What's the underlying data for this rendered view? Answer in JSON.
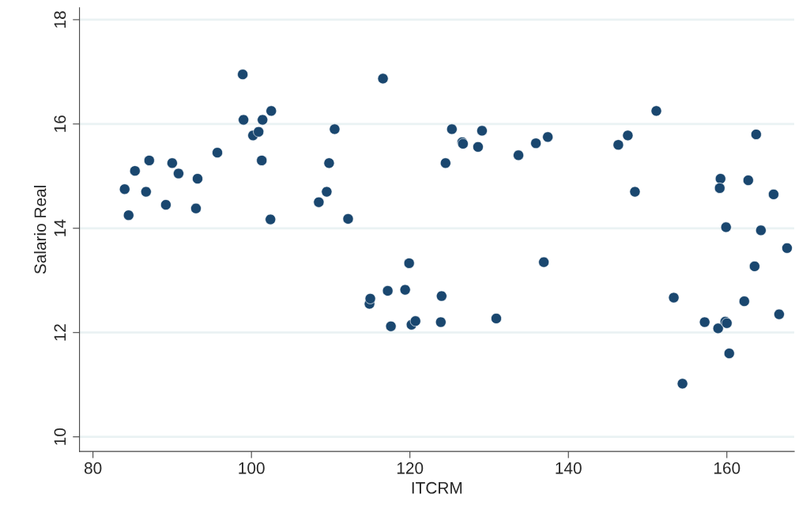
{
  "chart_data": {
    "type": "scatter",
    "xlabel": "ITCRM",
    "ylabel": "Salario Real",
    "xlim": [
      78.3,
      168.5
    ],
    "ylim": [
      9.72,
      18.23
    ],
    "xticks": [
      80,
      100,
      120,
      140,
      160
    ],
    "yticks": [
      10,
      12,
      14,
      16,
      18
    ],
    "grid": "y",
    "marker": "circle",
    "x": [
      84.0,
      84.5,
      85.3,
      86.7,
      87.1,
      89.2,
      90.0,
      90.8,
      93.0,
      93.2,
      95.7,
      98.9,
      99.0,
      100.2,
      100.9,
      101.4,
      101.3,
      102.5,
      102.4,
      108.5,
      109.5,
      109.8,
      110.5,
      112.2,
      114.9,
      115.0,
      116.6,
      117.2,
      117.6,
      119.4,
      119.9,
      120.2,
      120.7,
      123.9,
      124.0,
      124.5,
      125.3,
      126.6,
      126.7,
      128.6,
      129.1,
      130.9,
      133.7,
      135.9,
      136.9,
      137.4,
      146.3,
      147.5,
      148.4,
      151.1,
      153.3,
      154.4,
      157.2,
      158.9,
      159.2,
      159.1,
      159.8,
      160.0,
      159.9,
      160.3,
      162.2,
      162.7,
      163.5,
      163.7,
      164.3,
      165.9,
      166.6,
      167.6
    ],
    "series": [
      {
        "color": "#1a476f",
        "values": [
          14.75,
          14.25,
          15.1,
          14.7,
          15.3,
          14.45,
          15.25,
          15.05,
          14.38,
          14.95,
          15.45,
          16.95,
          16.08,
          15.78,
          15.85,
          16.08,
          15.3,
          16.25,
          14.17,
          14.5,
          14.7,
          15.25,
          15.9,
          14.18,
          12.55,
          12.65,
          16.87,
          12.8,
          12.12,
          12.82,
          13.33,
          12.15,
          12.22,
          12.2,
          12.7,
          15.25,
          15.9,
          15.65,
          15.62,
          15.56,
          15.87,
          12.27,
          15.4,
          15.63,
          13.35,
          15.75,
          15.6,
          15.78,
          14.7,
          16.25,
          12.67,
          11.02,
          12.2,
          12.08,
          14.95,
          14.77,
          12.21,
          12.18,
          14.02,
          11.6,
          12.6,
          14.92,
          13.27,
          15.8,
          13.96,
          14.65,
          12.35,
          13.62
        ]
      }
    ]
  }
}
